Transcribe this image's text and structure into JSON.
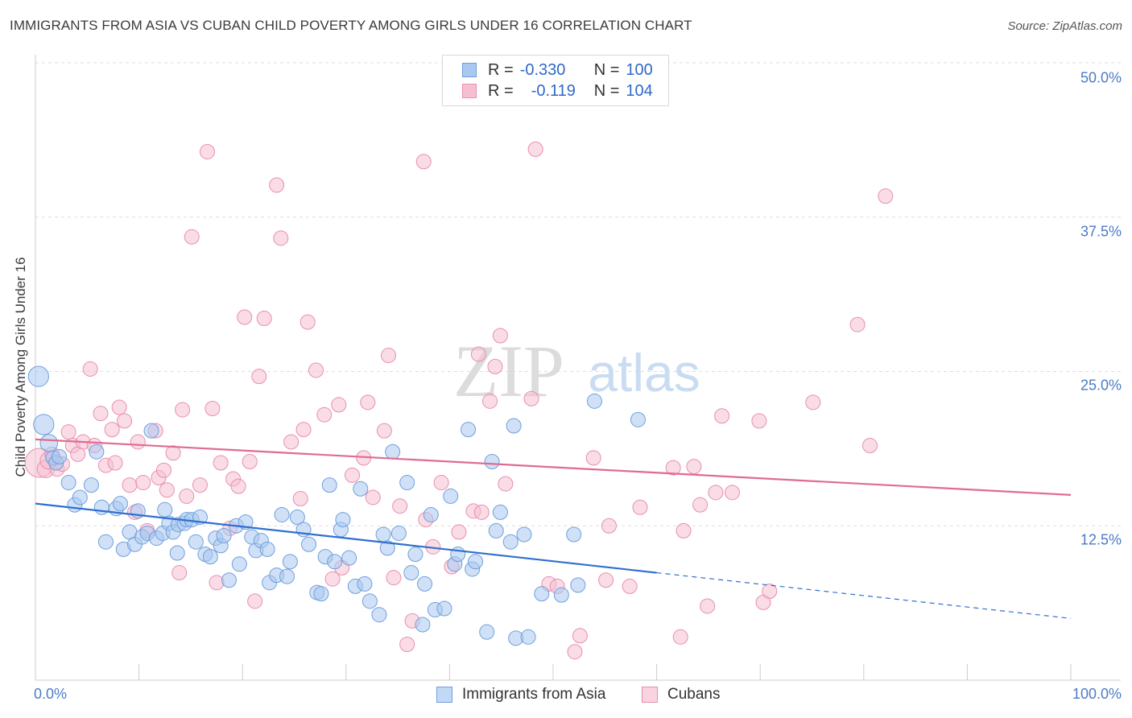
{
  "title": "IMMIGRANTS FROM ASIA VS CUBAN CHILD POVERTY AMONG GIRLS UNDER 16 CORRELATION CHART",
  "source": "Source: ZipAtlas.com",
  "watermark": {
    "zip": "ZIP",
    "atlas": "atlas"
  },
  "legend": {
    "rows": [
      {
        "r_label": "R =",
        "r_value": "-0.330",
        "n_label": "N =",
        "n_value": "100"
      },
      {
        "r_label": "R =",
        "r_value": "-0.119",
        "n_label": "N =",
        "n_value": "104"
      }
    ],
    "bottom": [
      "Immigrants from Asia",
      "Cubans"
    ]
  },
  "colors": {
    "blue_fill": "#a9c8f0",
    "blue_stroke": "#6f9fdc",
    "blue_line": "#2f6fcf",
    "pink_fill": "#f6bfd1",
    "pink_stroke": "#e88fad",
    "pink_line": "#e06b92",
    "tick_text": "#4a7bc8",
    "grid": "#dddddd"
  },
  "chart_data": {
    "type": "scatter",
    "title": "IMMIGRANTS FROM ASIA VS CUBAN CHILD POVERTY AMONG GIRLS UNDER 16 CORRELATION CHART",
    "xlabel": "",
    "ylabel": "Child Poverty Among Girls Under 16",
    "xlim": [
      0,
      100
    ],
    "ylim": [
      0,
      50
    ],
    "x_tick_labels": [
      "0.0%",
      "100.0%"
    ],
    "y_ticks": [
      12.5,
      25.0,
      37.5,
      50.0
    ],
    "y_tick_labels": [
      "12.5%",
      "25.0%",
      "37.5%",
      "50.0%"
    ],
    "grid": "horizontal dashed",
    "legend_placement": "top-center",
    "series": [
      {
        "name": "Immigrants from Asia",
        "R": -0.33,
        "N": 100,
        "trend": {
          "x0": 0,
          "y0": 14.3,
          "x1": 60,
          "y1": 8.7,
          "dashed_to": {
            "x": 100,
            "y": 5.0
          }
        },
        "points": [
          [
            0.3,
            24.6,
            1.4
          ],
          [
            0.8,
            20.7,
            1.4
          ],
          [
            1.3,
            19.2,
            1.2
          ],
          [
            1.7,
            18.0,
            1.0
          ],
          [
            2.0,
            17.6,
            1.0
          ],
          [
            2.3,
            18.1,
            1.0
          ],
          [
            3.2,
            16.0,
            1.0
          ],
          [
            3.8,
            14.2,
            1.0
          ],
          [
            4.3,
            14.8,
            1.0
          ],
          [
            5.4,
            15.8,
            1.0
          ],
          [
            5.9,
            18.5,
            1.0
          ],
          [
            6.4,
            14.0,
            1.0
          ],
          [
            6.8,
            11.2,
            1.0
          ],
          [
            7.8,
            13.9,
            1.0
          ],
          [
            8.2,
            14.3,
            1.0
          ],
          [
            8.5,
            10.6,
            1.0
          ],
          [
            9.1,
            12.0,
            1.0
          ],
          [
            9.6,
            11.0,
            1.0
          ],
          [
            9.9,
            13.7,
            1.0
          ],
          [
            10.3,
            11.6,
            1.0
          ],
          [
            10.8,
            11.9,
            1.0
          ],
          [
            11.2,
            20.2,
            1.0
          ],
          [
            11.7,
            11.5,
            1.0
          ],
          [
            12.3,
            11.9,
            1.0
          ],
          [
            12.5,
            13.8,
            1.0
          ],
          [
            12.9,
            12.7,
            1.0
          ],
          [
            13.3,
            12.0,
            1.0
          ],
          [
            13.8,
            12.6,
            1.0
          ],
          [
            13.7,
            10.3,
            1.0
          ],
          [
            14.4,
            12.7,
            1.0
          ],
          [
            14.6,
            13.0,
            1.0
          ],
          [
            15.1,
            13.0,
            1.0
          ],
          [
            15.5,
            11.2,
            1.0
          ],
          [
            15.9,
            13.2,
            1.0
          ],
          [
            16.4,
            10.2,
            1.0
          ],
          [
            16.9,
            10.0,
            1.0
          ],
          [
            17.4,
            11.5,
            1.0
          ],
          [
            17.9,
            10.9,
            1.0
          ],
          [
            18.2,
            11.7,
            1.0
          ],
          [
            18.7,
            8.1,
            1.0
          ],
          [
            19.4,
            12.5,
            1.0
          ],
          [
            19.7,
            9.4,
            1.0
          ],
          [
            20.3,
            12.8,
            1.0
          ],
          [
            20.9,
            11.6,
            1.0
          ],
          [
            21.3,
            10.5,
            1.0
          ],
          [
            21.8,
            11.3,
            1.0
          ],
          [
            22.4,
            10.6,
            1.0
          ],
          [
            22.6,
            7.9,
            1.0
          ],
          [
            23.3,
            8.5,
            1.0
          ],
          [
            23.8,
            13.4,
            1.0
          ],
          [
            24.3,
            8.4,
            1.0
          ],
          [
            24.6,
            9.6,
            1.0
          ],
          [
            25.3,
            13.2,
            1.0
          ],
          [
            25.9,
            12.2,
            1.0
          ],
          [
            26.4,
            11.0,
            1.0
          ],
          [
            27.2,
            7.1,
            1.0
          ],
          [
            27.6,
            7.0,
            1.0
          ],
          [
            28.0,
            10.0,
            1.0
          ],
          [
            28.4,
            15.8,
            1.0
          ],
          [
            28.9,
            9.6,
            1.0
          ],
          [
            29.5,
            12.2,
            1.0
          ],
          [
            29.7,
            13.0,
            1.0
          ],
          [
            30.3,
            9.9,
            1.0
          ],
          [
            30.9,
            7.6,
            1.0
          ],
          [
            31.4,
            15.5,
            1.0
          ],
          [
            31.8,
            7.8,
            1.0
          ],
          [
            32.3,
            6.4,
            1.0
          ],
          [
            33.2,
            5.3,
            1.0
          ],
          [
            33.6,
            11.8,
            1.0
          ],
          [
            34.0,
            10.7,
            1.0
          ],
          [
            34.5,
            18.5,
            1.0
          ],
          [
            35.1,
            11.9,
            1.0
          ],
          [
            35.9,
            16.0,
            1.0
          ],
          [
            36.3,
            8.7,
            1.0
          ],
          [
            36.7,
            10.2,
            1.0
          ],
          [
            37.4,
            4.5,
            1.0
          ],
          [
            37.6,
            7.8,
            1.0
          ],
          [
            38.2,
            13.4,
            1.0
          ],
          [
            38.6,
            5.7,
            1.0
          ],
          [
            39.5,
            5.8,
            1.0
          ],
          [
            40.1,
            14.9,
            1.0
          ],
          [
            40.5,
            9.4,
            1.0
          ],
          [
            40.8,
            10.2,
            1.0
          ],
          [
            41.8,
            20.3,
            1.0
          ],
          [
            42.2,
            9.0,
            1.0
          ],
          [
            42.5,
            9.6,
            1.0
          ],
          [
            43.6,
            3.9,
            1.0
          ],
          [
            44.1,
            17.7,
            1.0
          ],
          [
            44.5,
            12.1,
            1.0
          ],
          [
            44.9,
            13.6,
            1.0
          ],
          [
            45.9,
            11.2,
            1.0
          ],
          [
            46.4,
            3.4,
            1.0
          ],
          [
            46.2,
            20.6,
            1.0
          ],
          [
            47.6,
            3.5,
            1.0
          ],
          [
            47.2,
            11.8,
            1.0
          ],
          [
            48.9,
            7.0,
            1.0
          ],
          [
            50.8,
            6.9,
            1.0
          ],
          [
            52.0,
            11.8,
            1.0
          ],
          [
            52.4,
            7.7,
            1.0
          ],
          [
            54.0,
            22.6,
            1.0
          ],
          [
            58.2,
            21.1,
            1.0
          ]
        ]
      },
      {
        "name": "Cubans",
        "R": -0.119,
        "N": 104,
        "trend": {
          "x0": 0,
          "y0": 19.5,
          "x1": 100,
          "y1": 15.0
        },
        "points": [
          [
            0.4,
            17.6,
            2.0
          ],
          [
            1.0,
            17.1,
            1.2
          ],
          [
            1.3,
            17.8,
            1.2
          ],
          [
            1.6,
            18.3,
            1.0
          ],
          [
            2.1,
            17.1,
            1.0
          ],
          [
            2.6,
            17.5,
            1.0
          ],
          [
            3.2,
            20.1,
            1.0
          ],
          [
            3.6,
            19.0,
            1.0
          ],
          [
            4.1,
            18.3,
            1.0
          ],
          [
            4.6,
            19.3,
            1.0
          ],
          [
            5.3,
            25.2,
            1.0
          ],
          [
            5.7,
            19.0,
            1.0
          ],
          [
            6.3,
            21.6,
            1.0
          ],
          [
            6.8,
            17.4,
            1.0
          ],
          [
            7.4,
            20.3,
            1.0
          ],
          [
            7.7,
            17.6,
            1.0
          ],
          [
            8.1,
            22.1,
            1.0
          ],
          [
            8.6,
            21.0,
            1.0
          ],
          [
            9.1,
            15.8,
            1.0
          ],
          [
            9.6,
            13.6,
            1.0
          ],
          [
            9.9,
            19.3,
            1.0
          ],
          [
            10.4,
            16.0,
            1.0
          ],
          [
            10.8,
            12.1,
            1.0
          ],
          [
            11.6,
            20.2,
            1.0
          ],
          [
            11.9,
            16.4,
            1.0
          ],
          [
            12.4,
            17.0,
            1.0
          ],
          [
            12.7,
            15.4,
            1.0
          ],
          [
            13.3,
            18.4,
            1.0
          ],
          [
            13.9,
            8.7,
            1.0
          ],
          [
            14.2,
            21.9,
            1.0
          ],
          [
            14.6,
            14.9,
            1.0
          ],
          [
            15.1,
            35.9,
            1.0
          ],
          [
            15.9,
            15.8,
            1.0
          ],
          [
            16.6,
            42.8,
            1.0
          ],
          [
            17.1,
            22.0,
            1.0
          ],
          [
            17.5,
            7.9,
            1.0
          ],
          [
            17.9,
            17.6,
            1.0
          ],
          [
            18.8,
            12.3,
            1.0
          ],
          [
            19.1,
            16.3,
            1.0
          ],
          [
            19.6,
            15.7,
            1.0
          ],
          [
            20.2,
            29.4,
            1.0
          ],
          [
            20.7,
            17.7,
            1.0
          ],
          [
            21.2,
            6.4,
            1.0
          ],
          [
            21.6,
            24.6,
            1.0
          ],
          [
            22.1,
            29.3,
            1.0
          ],
          [
            23.3,
            40.1,
            1.0
          ],
          [
            23.7,
            35.8,
            1.0
          ],
          [
            24.7,
            19.3,
            1.0
          ],
          [
            25.6,
            14.7,
            1.0
          ],
          [
            25.9,
            20.3,
            1.0
          ],
          [
            26.3,
            29.0,
            1.0
          ],
          [
            27.1,
            25.1,
            1.0
          ],
          [
            27.9,
            21.5,
            1.0
          ],
          [
            28.7,
            8.2,
            1.0
          ],
          [
            29.3,
            22.3,
            1.0
          ],
          [
            29.6,
            9.1,
            1.0
          ],
          [
            30.6,
            16.6,
            1.0
          ],
          [
            31.7,
            18.0,
            1.0
          ],
          [
            32.1,
            22.5,
            1.0
          ],
          [
            32.6,
            14.8,
            1.0
          ],
          [
            33.7,
            20.2,
            1.0
          ],
          [
            34.1,
            26.3,
            1.0
          ],
          [
            34.6,
            8.3,
            1.0
          ],
          [
            35.2,
            14.1,
            1.0
          ],
          [
            35.9,
            2.9,
            1.0
          ],
          [
            36.4,
            4.8,
            1.0
          ],
          [
            37.5,
            42.0,
            1.0
          ],
          [
            37.7,
            13.0,
            1.0
          ],
          [
            38.4,
            10.8,
            1.0
          ],
          [
            39.2,
            16.0,
            1.0
          ],
          [
            40.2,
            9.2,
            1.0
          ],
          [
            40.9,
            12.0,
            1.0
          ],
          [
            42.3,
            13.7,
            1.0
          ],
          [
            42.8,
            26.4,
            1.0
          ],
          [
            43.1,
            13.6,
            1.0
          ],
          [
            43.9,
            22.6,
            1.0
          ],
          [
            44.4,
            25.4,
            1.0
          ],
          [
            44.9,
            27.9,
            1.0
          ],
          [
            45.4,
            15.9,
            1.0
          ],
          [
            47.9,
            22.8,
            1.0
          ],
          [
            48.3,
            43.0,
            1.0
          ],
          [
            49.6,
            7.8,
            1.0
          ],
          [
            52.1,
            2.3,
            1.0
          ],
          [
            52.6,
            3.6,
            1.0
          ],
          [
            53.9,
            18.0,
            1.0
          ],
          [
            55.1,
            8.1,
            1.0
          ],
          [
            55.4,
            12.5,
            1.0
          ],
          [
            57.4,
            7.6,
            1.0
          ],
          [
            58.4,
            14.0,
            1.0
          ],
          [
            61.6,
            17.2,
            1.0
          ],
          [
            62.3,
            3.5,
            1.0
          ],
          [
            62.6,
            12.1,
            1.0
          ],
          [
            63.6,
            17.3,
            1.0
          ],
          [
            64.2,
            14.2,
            1.0
          ],
          [
            64.9,
            6.0,
            1.0
          ],
          [
            65.7,
            15.2,
            1.0
          ],
          [
            66.3,
            21.4,
            1.0
          ],
          [
            67.3,
            15.2,
            1.0
          ],
          [
            69.9,
            21.0,
            1.0
          ],
          [
            70.3,
            6.3,
            1.0
          ],
          [
            70.9,
            7.2,
            1.0
          ],
          [
            75.1,
            22.5,
            1.0
          ],
          [
            79.4,
            28.8,
            1.0
          ],
          [
            80.6,
            19.0,
            1.0
          ],
          [
            82.1,
            39.2,
            1.0
          ],
          [
            50.4,
            7.6,
            1.0
          ]
        ]
      }
    ]
  }
}
